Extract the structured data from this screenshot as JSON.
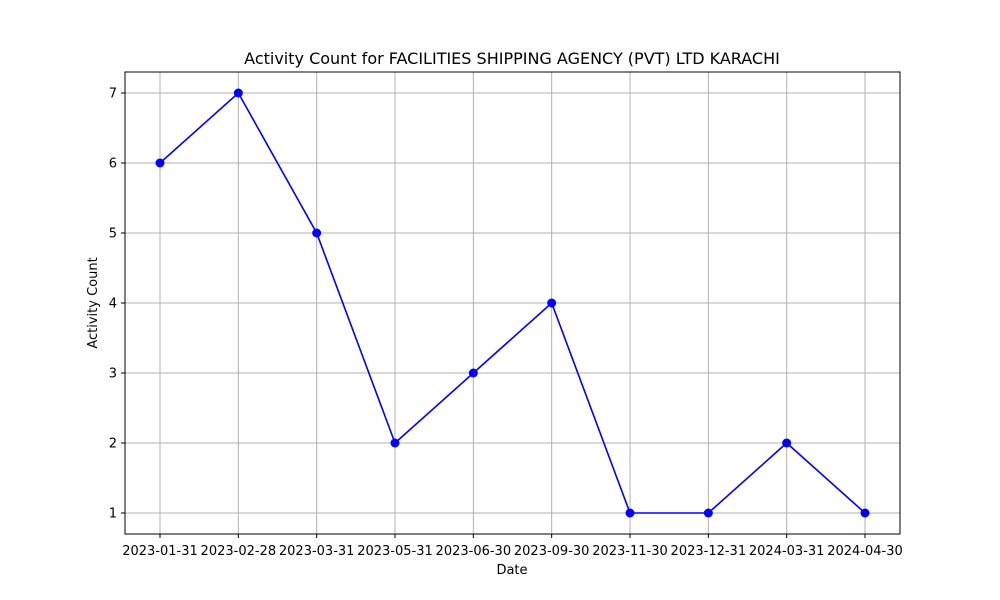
{
  "chart_data": {
    "type": "line",
    "title": "Activity Count for FACILITIES SHIPPING AGENCY (PVT) LTD KARACHI",
    "xlabel": "Date",
    "ylabel": "Activity Count",
    "categories": [
      "2023-01-31",
      "2023-02-28",
      "2023-03-31",
      "2023-05-31",
      "2023-06-30",
      "2023-09-30",
      "2023-11-30",
      "2023-12-31",
      "2024-03-31",
      "2024-04-30"
    ],
    "values": [
      6,
      7,
      5,
      2,
      3,
      4,
      1,
      1,
      2,
      1
    ],
    "yticks": [
      1,
      2,
      3,
      4,
      5,
      6,
      7
    ],
    "ylim": [
      0.7,
      7.3
    ],
    "line_color": "#0000ff",
    "marker": "circle",
    "grid": true
  }
}
